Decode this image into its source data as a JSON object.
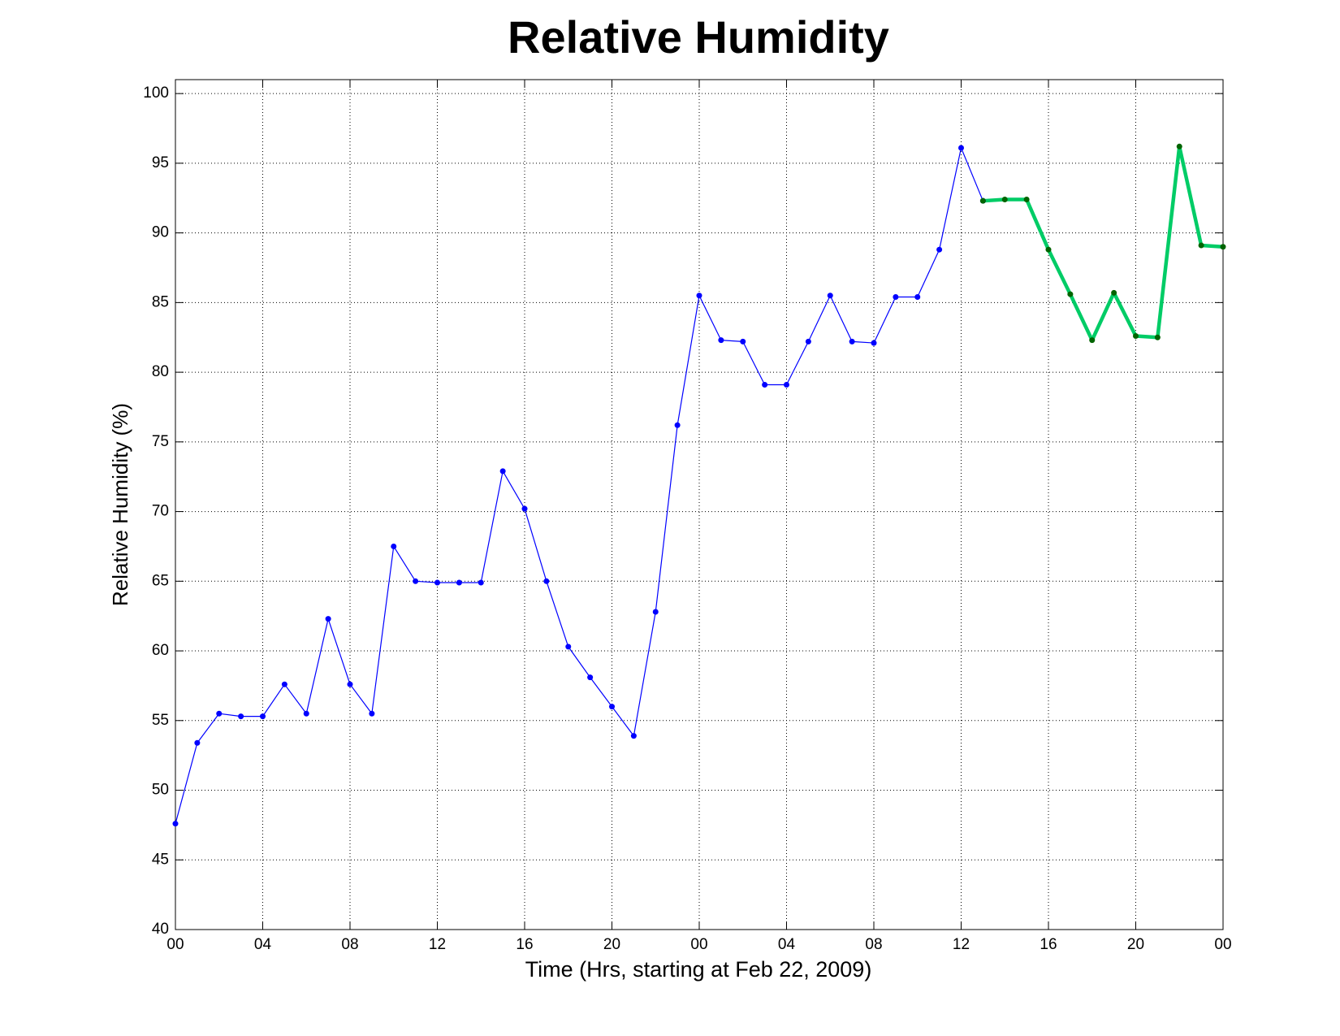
{
  "chart_data": {
    "type": "line",
    "title": "Relative Humidity",
    "x_label": "Time (Hrs, starting at Feb 22, 2009)",
    "y_label": "Relative Humidity (%)",
    "xlim": [
      0,
      48
    ],
    "ylim": [
      40,
      101
    ],
    "xticks": [
      {
        "value": 0,
        "label": "00"
      },
      {
        "value": 4,
        "label": "04"
      },
      {
        "value": 8,
        "label": "08"
      },
      12,
      16,
      20,
      {
        "value": 24,
        "label": "00"
      },
      {
        "value": 28,
        "label": "04"
      },
      {
        "value": 32,
        "label": "08"
      },
      {
        "value": 36,
        "label": "12"
      },
      {
        "value": 40,
        "label": "16"
      },
      {
        "value": 44,
        "label": "20"
      },
      {
        "value": 48,
        "label": "00"
      }
    ],
    "yticks": [
      40,
      45,
      50,
      55,
      60,
      65,
      70,
      75,
      80,
      85,
      90,
      95,
      100
    ],
    "grid": true,
    "series": [
      {
        "color": "#0000ff",
        "marker_color": "#0000ff",
        "line_width": 1.2,
        "x": [
          0,
          1,
          2,
          3,
          4,
          5,
          6,
          7,
          8,
          9,
          10,
          11,
          12,
          13,
          14,
          15,
          16,
          17,
          18,
          19,
          20,
          21,
          22,
          23,
          24,
          25,
          26,
          27,
          28,
          29,
          30,
          31,
          32,
          33,
          34,
          35,
          36,
          37
        ],
        "values": [
          47.6,
          53.4,
          55.5,
          55.3,
          55.3,
          57.6,
          55.5,
          62.3,
          57.6,
          55.5,
          67.5,
          65.0,
          64.9,
          64.9,
          64.9,
          72.9,
          70.2,
          65.0,
          60.3,
          58.1,
          56.0,
          53.9,
          62.8,
          76.2,
          85.5,
          82.3,
          82.2,
          79.1,
          79.1,
          82.2,
          85.5,
          82.2,
          82.1,
          85.4,
          85.4,
          88.8,
          96.1,
          92.3
        ]
      },
      {
        "color": "#00cc66",
        "marker_color": "#006400",
        "line_width": 4.5,
        "x": [
          37,
          38,
          39,
          40,
          41,
          42,
          43,
          44,
          45,
          46,
          47,
          48
        ],
        "values": [
          92.3,
          92.4,
          92.4,
          88.8,
          85.6,
          82.3,
          85.7,
          82.6,
          82.5,
          96.2,
          89.1,
          89.0
        ]
      }
    ]
  }
}
